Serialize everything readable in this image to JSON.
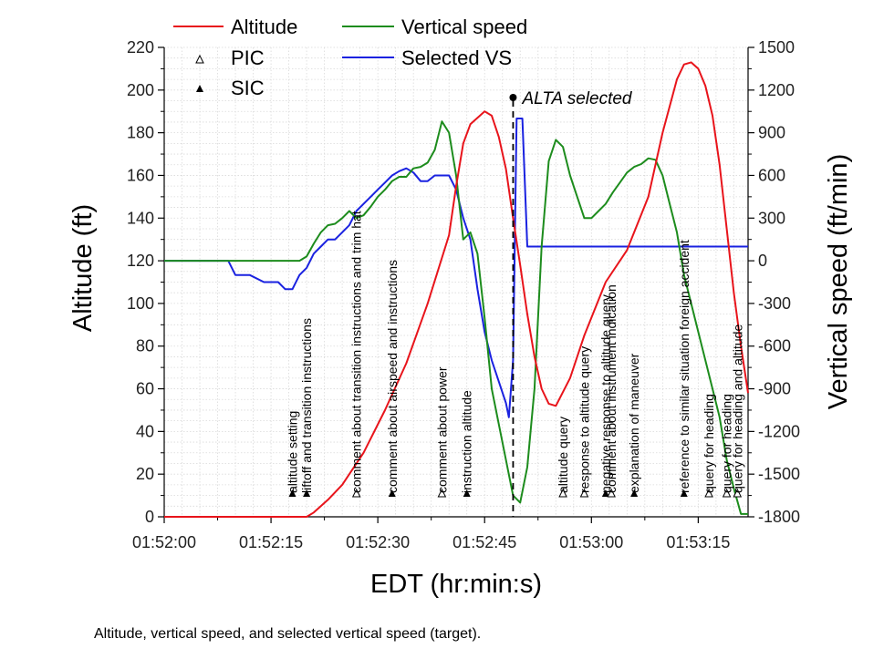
{
  "caption": "Altitude, vertical speed, and selected vertical speed (target).",
  "chart_data": {
    "type": "line",
    "xlabel": "EDT (hr:min:s)",
    "ylabel_left": "Altitude (ft)",
    "ylabel_right": "Vertical speed (ft/min)",
    "xlim_s": [
      0,
      82
    ],
    "x_ticks": [
      {
        "s": 0,
        "label": "01:52:00"
      },
      {
        "s": 15,
        "label": "01:52:15"
      },
      {
        "s": 30,
        "label": "01:52:30"
      },
      {
        "s": 45,
        "label": "01:52:45"
      },
      {
        "s": 60,
        "label": "01:53:00"
      },
      {
        "s": 75,
        "label": "01:53:15"
      }
    ],
    "ylim_left": [
      0,
      220
    ],
    "y_ticks_left": [
      "0",
      "20",
      "40",
      "60",
      "80",
      "100",
      "120",
      "140",
      "160",
      "180",
      "200",
      "220"
    ],
    "ylim_right": [
      -1800,
      1500
    ],
    "y_ticks_right": [
      "-1800",
      "-1500",
      "-1200",
      "-900",
      "-600",
      "-300",
      "0",
      "300",
      "600",
      "900",
      "1200",
      "1500"
    ],
    "grid": true,
    "legend": [
      {
        "name": "Altitude",
        "color": "#e8141b"
      },
      {
        "name": "Vertical speed",
        "color": "#1d8c1d"
      },
      {
        "name": "Selected VS",
        "color": "#1a22e0"
      },
      {
        "name": "PIC",
        "marker": "open-triangle"
      },
      {
        "name": "SIC",
        "marker": "filled-triangle"
      }
    ],
    "series": [
      {
        "name": "Altitude",
        "axis": "left",
        "color": "#e8141b",
        "x": [
          0,
          20,
          21,
          23,
          25,
          28,
          31,
          34,
          37,
          40,
          41,
          42,
          43,
          44,
          45,
          46,
          47,
          48,
          49,
          50,
          51,
          52,
          53,
          54,
          55,
          57,
          59,
          62,
          65,
          68,
          70,
          72,
          73,
          74,
          75,
          76,
          77,
          78,
          79,
          80,
          81,
          82
        ],
        "y": [
          0,
          0,
          2,
          8,
          15,
          30,
          50,
          72,
          100,
          132,
          155,
          175,
          184,
          187,
          190,
          188,
          178,
          163,
          140,
          118,
          95,
          75,
          60,
          53,
          52,
          65,
          85,
          110,
          125,
          150,
          180,
          205,
          212,
          213,
          210,
          202,
          188,
          165,
          135,
          105,
          80,
          58
        ]
      },
      {
        "name": "Vertical speed",
        "axis": "right",
        "color": "#1d8c1d",
        "x": [
          0,
          19,
          20,
          21,
          22,
          23,
          24,
          25,
          26,
          27,
          28,
          29,
          30,
          31,
          32,
          33,
          34,
          35,
          36,
          37,
          38,
          39,
          40,
          41,
          42,
          43,
          44,
          45,
          46,
          47,
          48,
          49,
          50,
          51,
          52,
          53,
          54,
          55,
          56,
          57,
          58,
          59,
          60,
          61,
          62,
          63,
          64,
          65,
          66,
          67,
          68,
          69,
          70,
          71,
          72,
          73,
          74,
          75,
          76,
          77,
          78,
          79,
          80,
          81,
          82
        ],
        "y": [
          0,
          0,
          30,
          120,
          200,
          250,
          260,
          300,
          350,
          300,
          320,
          380,
          450,
          500,
          560,
          590,
          590,
          650,
          660,
          690,
          780,
          980,
          900,
          600,
          150,
          200,
          50,
          -400,
          -900,
          -1150,
          -1400,
          -1650,
          -1700,
          -1450,
          -900,
          100,
          700,
          850,
          800,
          600,
          450,
          300,
          300,
          350,
          400,
          480,
          550,
          620,
          660,
          680,
          720,
          710,
          600,
          400,
          200,
          -100,
          -300,
          -500,
          -700,
          -900,
          -1100,
          -1400,
          -1600,
          -1780,
          -1780
        ]
      },
      {
        "name": "Selected VS",
        "axis": "right",
        "color": "#1a22e0",
        "x": [
          0,
          9,
          10,
          12,
          14,
          16,
          17,
          18,
          19,
          20,
          21,
          22,
          23,
          24,
          25,
          26,
          27,
          28,
          29,
          30,
          31,
          32,
          33,
          34,
          35,
          36,
          37,
          38,
          39,
          40,
          41,
          42,
          43,
          44,
          45,
          46,
          47,
          48,
          48.4,
          49,
          49.5,
          50,
          50.3,
          51,
          60,
          70,
          82
        ],
        "y": [
          0,
          0,
          -100,
          -100,
          -150,
          -150,
          -200,
          -200,
          -100,
          -50,
          50,
          100,
          150,
          150,
          200,
          250,
          350,
          400,
          450,
          500,
          550,
          600,
          630,
          650,
          620,
          560,
          560,
          600,
          600,
          600,
          500,
          300,
          150,
          -200,
          -500,
          -700,
          -850,
          -1000,
          -1100,
          -700,
          1000,
          1000,
          1000,
          100,
          100,
          100,
          100
        ]
      }
    ],
    "annotation": {
      "x_s": 49,
      "label": "ALTA selected"
    },
    "event_markers": [
      {
        "x_s": 18,
        "marker": "filled",
        "label": "altitude setting"
      },
      {
        "x_s": 20,
        "marker": "filled",
        "label": "liftoff and transition instructions"
      },
      {
        "x_s": 27,
        "marker": "open",
        "label": "comment about transition instructions and trim hat"
      },
      {
        "x_s": 32,
        "marker": "filled",
        "label": "comment about airspeed and instructions"
      },
      {
        "x_s": 39,
        "marker": "open",
        "label": "comment about power"
      },
      {
        "x_s": 42.5,
        "marker": "filled",
        "label": "instruction altitude"
      },
      {
        "x_s": 56,
        "marker": "open",
        "label": "altitude query"
      },
      {
        "x_s": 59,
        "marker": "open",
        "label": "response to altitude query"
      },
      {
        "x_s": 62,
        "marker": "filled",
        "label": "negative response to altitude query"
      },
      {
        "x_s": 62.8,
        "marker": "open",
        "label": "comment about instrument indication"
      },
      {
        "x_s": 66,
        "marker": "filled",
        "label": "explanation of maneuver"
      },
      {
        "x_s": 73,
        "marker": "filled",
        "label": "reference to similar situation foreign accident"
      },
      {
        "x_s": 76.5,
        "marker": "open",
        "label": "query for heading"
      },
      {
        "x_s": 79,
        "marker": "open",
        "label": "query for heading"
      },
      {
        "x_s": 80.5,
        "marker": "open",
        "label": "query for heading and altitude"
      }
    ]
  }
}
